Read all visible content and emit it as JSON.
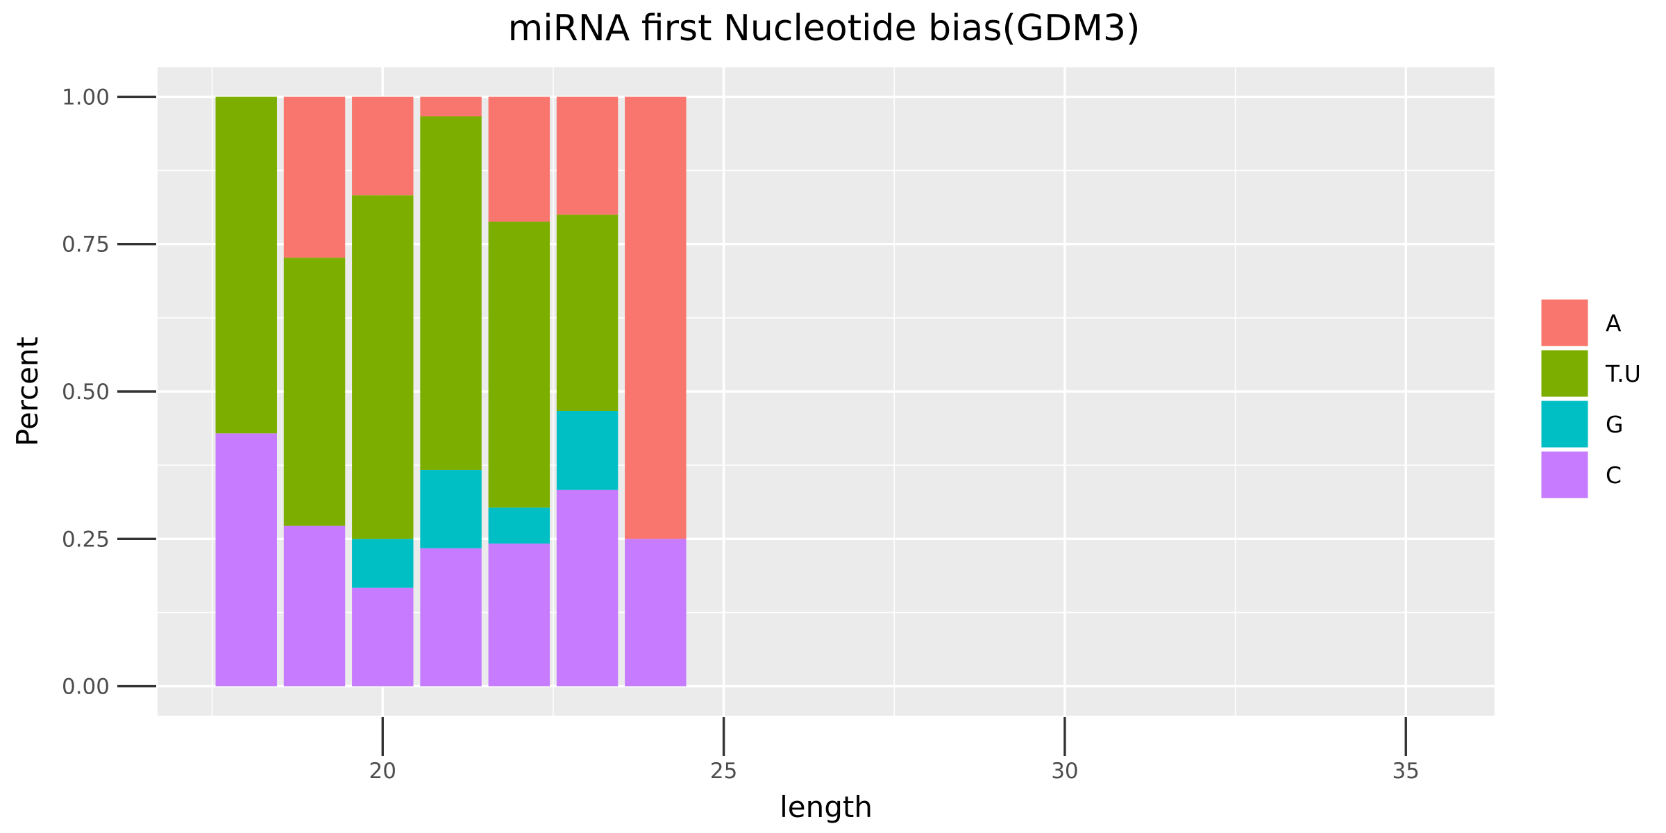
{
  "chart_data": {
    "type": "bar",
    "stacked": true,
    "title": "miRNA first Nucleotide bias(GDM3)",
    "xlabel": "length",
    "ylabel": "Percent",
    "xlim": [
      16.7,
      36.3
    ],
    "ylim": [
      -0.05,
      1.05
    ],
    "x_ticks": [
      20,
      25,
      30,
      35
    ],
    "x_tick_labels": [
      "20",
      "25",
      "30",
      "35"
    ],
    "y_ticks": [
      0,
      0.25,
      0.5,
      0.75,
      1.0
    ],
    "y_tick_labels": [
      "0.00",
      "0.25",
      "0.50",
      "0.75",
      "1.00"
    ],
    "grid": true,
    "legend_position": "right",
    "x": [
      18,
      19,
      20,
      21,
      22,
      23,
      24
    ],
    "stack_order_bottom_to_top": [
      "C",
      "G",
      "T.U",
      "A"
    ],
    "series": [
      {
        "name": "A",
        "color": "#F8766D",
        "values": [
          0.0,
          0.273,
          0.167,
          0.033,
          0.212,
          0.2,
          0.75
        ]
      },
      {
        "name": "T.U",
        "color": "#7CAE00",
        "values": [
          0.571,
          0.455,
          0.583,
          0.6,
          0.485,
          0.333,
          0.0
        ]
      },
      {
        "name": "G",
        "color": "#00BFC4",
        "values": [
          0.0,
          0.0,
          0.083,
          0.133,
          0.061,
          0.134,
          0.0
        ]
      },
      {
        "name": "C",
        "color": "#C77CFF",
        "values": [
          0.429,
          0.272,
          0.167,
          0.234,
          0.242,
          0.333,
          0.25
        ]
      }
    ]
  }
}
